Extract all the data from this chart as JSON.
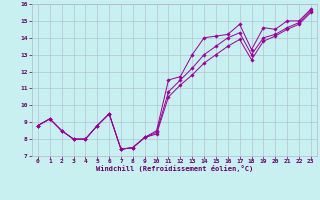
{
  "xlabel": "Windchill (Refroidissement éolien,°C)",
  "bg_color": "#c8f0f0",
  "line_color": "#990099",
  "grid_color": "#b0b8cc",
  "text_color": "#660066",
  "xlim": [
    -0.5,
    23.5
  ],
  "ylim": [
    7,
    16
  ],
  "xticks": [
    0,
    1,
    2,
    3,
    4,
    5,
    6,
    7,
    8,
    9,
    10,
    11,
    12,
    13,
    14,
    15,
    16,
    17,
    18,
    19,
    20,
    21,
    22,
    23
  ],
  "yticks": [
    7,
    8,
    9,
    10,
    11,
    12,
    13,
    14,
    15,
    16
  ],
  "line1_x": [
    0,
    1,
    2,
    3,
    4,
    5,
    6,
    7,
    8,
    9,
    10,
    11,
    12,
    13,
    14,
    15,
    16,
    17,
    18,
    19,
    20,
    21,
    22,
    23
  ],
  "line1_y": [
    8.8,
    9.2,
    8.5,
    8.0,
    8.0,
    8.8,
    9.5,
    7.4,
    7.5,
    8.1,
    8.5,
    11.5,
    11.7,
    13.0,
    14.0,
    14.1,
    14.2,
    14.8,
    13.3,
    14.6,
    14.5,
    15.0,
    15.0,
    15.7
  ],
  "line2_x": [
    0,
    1,
    2,
    3,
    4,
    5,
    6,
    7,
    8,
    9,
    10,
    11,
    12,
    13,
    14,
    15,
    16,
    17,
    18,
    19,
    20,
    21,
    22,
    23
  ],
  "line2_y": [
    8.8,
    9.2,
    8.5,
    8.0,
    8.0,
    8.8,
    9.5,
    7.4,
    7.5,
    8.1,
    8.4,
    10.8,
    11.5,
    12.2,
    13.0,
    13.5,
    14.0,
    14.3,
    13.0,
    14.0,
    14.2,
    14.6,
    14.9,
    15.6
  ],
  "line3_x": [
    0,
    1,
    2,
    3,
    4,
    5,
    6,
    7,
    8,
    9,
    10,
    11,
    12,
    13,
    14,
    15,
    16,
    17,
    18,
    19,
    20,
    21,
    22,
    23
  ],
  "line3_y": [
    8.8,
    9.2,
    8.5,
    8.0,
    8.0,
    8.8,
    9.5,
    7.4,
    7.5,
    8.1,
    8.3,
    10.5,
    11.2,
    11.8,
    12.5,
    13.0,
    13.5,
    13.9,
    12.7,
    13.8,
    14.1,
    14.5,
    14.8,
    15.5
  ]
}
